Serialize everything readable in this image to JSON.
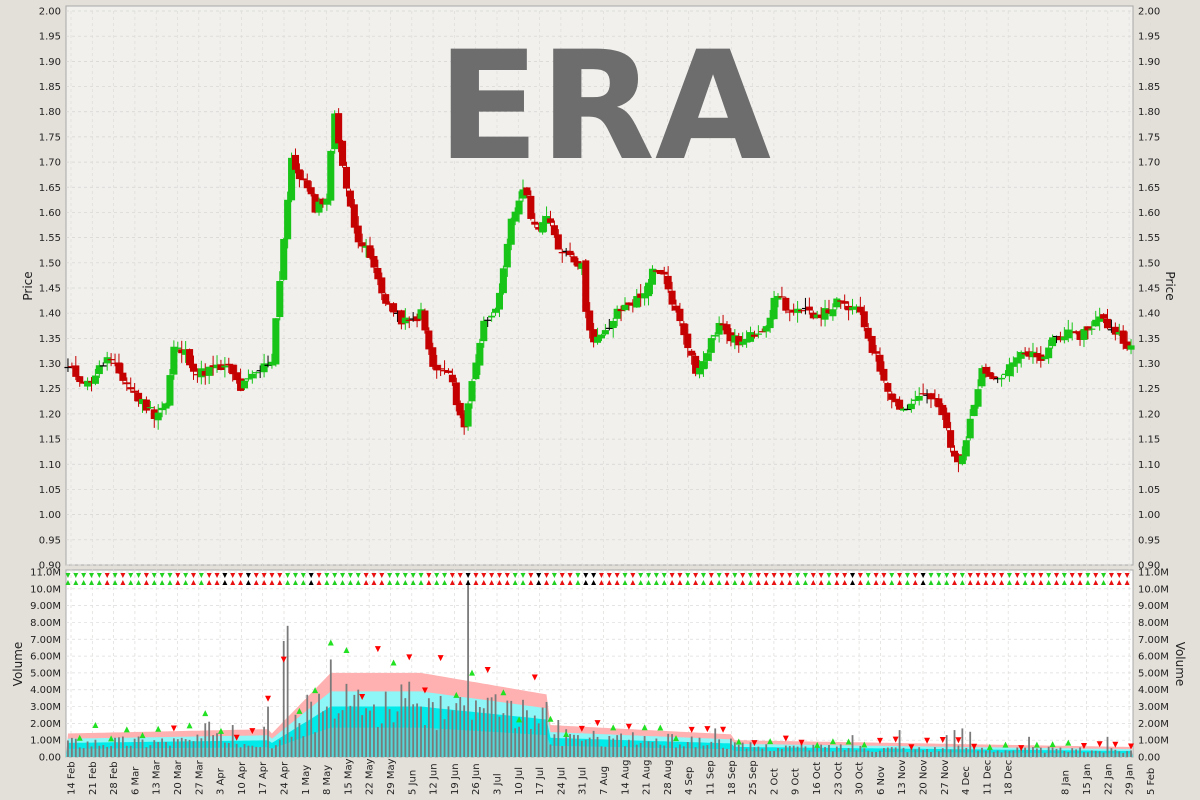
{
  "chart_data": {
    "type": "ohlc",
    "watermark": "ERA",
    "price_panel": {
      "ylabel": "Price",
      "ylim": [
        0.9,
        2.0
      ],
      "yticks": [
        "0.90",
        "0.95",
        "1.00",
        "1.05",
        "1.10",
        "1.15",
        "1.20",
        "1.25",
        "1.30",
        "1.35",
        "1.40",
        "1.45",
        "1.50",
        "1.55",
        "1.60",
        "1.65",
        "1.70",
        "1.75",
        "1.80",
        "1.85",
        "1.90",
        "1.95",
        "2.00"
      ],
      "grid": true
    },
    "volume_panel": {
      "ylabel": "Volume",
      "ylim": [
        0,
        11000000
      ],
      "yticks": [
        "0.00",
        "1.00M",
        "2.00M",
        "3.00M",
        "4.00M",
        "5.00M",
        "6.00M",
        "7.00M",
        "8.00M",
        "9.00M",
        "10.0M",
        "11.0M"
      ],
      "grid": true
    },
    "x_ticks": [
      "14 Feb",
      "21 Feb",
      "28 Feb",
      "6 Mar",
      "13 Mar",
      "20 Mar",
      "27 Mar",
      "3 Apr",
      "10 Apr",
      "17 Apr",
      "24 Apr",
      "1 May",
      "8 May",
      "15 May",
      "22 May",
      "29 May",
      "5 Jun",
      "12 Jun",
      "19 Jun",
      "26 Jun",
      "3 Jul",
      "10 Jul",
      "17 Jul",
      "24 Jul",
      "31 Jul",
      "7 Aug",
      "14 Aug",
      "21 Aug",
      "28 Aug",
      "4 Sep",
      "11 Sep",
      "18 Sep",
      "25 Sep",
      "2 Oct",
      "9 Oct",
      "16 Oct",
      "23 Oct",
      "30 Oct",
      "6 Nov",
      "13 Nov",
      "20 Nov",
      "27 Nov",
      "4 Dec",
      "11 Dec",
      "18 Dec",
      "8 Jan",
      "15 Jan",
      "22 Jan",
      "29 Jan",
      "5 Feb"
    ],
    "price_path": [
      [
        0,
        1.29
      ],
      [
        5,
        1.26
      ],
      [
        10,
        1.31
      ],
      [
        15,
        1.26
      ],
      [
        18,
        1.23
      ],
      [
        22,
        1.2
      ],
      [
        25,
        1.22
      ],
      [
        27,
        1.33
      ],
      [
        30,
        1.32
      ],
      [
        33,
        1.28
      ],
      [
        37,
        1.29
      ],
      [
        41,
        1.29
      ],
      [
        44,
        1.25
      ],
      [
        48,
        1.28
      ],
      [
        52,
        1.31
      ],
      [
        55,
        1.55
      ],
      [
        57,
        1.7
      ],
      [
        60,
        1.66
      ],
      [
        63,
        1.61
      ],
      [
        66,
        1.63
      ],
      [
        68,
        1.8
      ],
      [
        71,
        1.64
      ],
      [
        74,
        1.55
      ],
      [
        77,
        1.51
      ],
      [
        80,
        1.44
      ],
      [
        84,
        1.39
      ],
      [
        87,
        1.38
      ],
      [
        90,
        1.4
      ],
      [
        93,
        1.29
      ],
      [
        97,
        1.28
      ],
      [
        100,
        1.2
      ],
      [
        101,
        1.17
      ],
      [
        103,
        1.27
      ],
      [
        106,
        1.38
      ],
      [
        110,
        1.43
      ],
      [
        113,
        1.58
      ],
      [
        116,
        1.65
      ],
      [
        119,
        1.57
      ],
      [
        122,
        1.59
      ],
      [
        125,
        1.53
      ],
      [
        128,
        1.52
      ],
      [
        131,
        1.49
      ],
      [
        132,
        1.41
      ],
      [
        134,
        1.34
      ],
      [
        137,
        1.36
      ],
      [
        140,
        1.4
      ],
      [
        143,
        1.42
      ],
      [
        146,
        1.43
      ],
      [
        149,
        1.48
      ],
      [
        152,
        1.47
      ],
      [
        155,
        1.4
      ],
      [
        158,
        1.34
      ],
      [
        160,
        1.28
      ],
      [
        163,
        1.33
      ],
      [
        166,
        1.38
      ],
      [
        169,
        1.35
      ],
      [
        172,
        1.34
      ],
      [
        175,
        1.36
      ],
      [
        178,
        1.38
      ],
      [
        181,
        1.44
      ],
      [
        184,
        1.4
      ],
      [
        187,
        1.4
      ],
      [
        190,
        1.4
      ],
      [
        193,
        1.4
      ],
      [
        196,
        1.42
      ],
      [
        199,
        1.41
      ],
      [
        202,
        1.4
      ],
      [
        205,
        1.33
      ],
      [
        208,
        1.27
      ],
      [
        211,
        1.22
      ],
      [
        214,
        1.21
      ],
      [
        217,
        1.24
      ],
      [
        220,
        1.23
      ],
      [
        223,
        1.2
      ],
      [
        225,
        1.13
      ],
      [
        227,
        1.1
      ],
      [
        230,
        1.18
      ],
      [
        233,
        1.3
      ],
      [
        236,
        1.27
      ],
      [
        239,
        1.28
      ],
      [
        242,
        1.31
      ],
      [
        245,
        1.32
      ],
      [
        248,
        1.3
      ],
      [
        251,
        1.35
      ],
      [
        254,
        1.36
      ],
      [
        257,
        1.35
      ],
      [
        260,
        1.37
      ],
      [
        263,
        1.39
      ],
      [
        266,
        1.37
      ],
      [
        269,
        1.35
      ],
      [
        271,
        1.33
      ]
    ],
    "volume_spikes": [
      [
        35,
        2.0
      ],
      [
        36,
        2.1
      ],
      [
        39,
        1.4
      ],
      [
        42,
        1.9
      ],
      [
        50,
        1.8
      ],
      [
        51,
        3.0
      ],
      [
        55,
        6.9
      ],
      [
        56,
        7.8
      ],
      [
        61,
        3.7
      ],
      [
        66,
        3.0
      ],
      [
        67,
        5.8
      ],
      [
        69,
        2.6
      ],
      [
        76,
        2.9
      ],
      [
        80,
        2.0
      ],
      [
        86,
        3.5
      ],
      [
        90,
        3.0
      ],
      [
        94,
        1.6
      ],
      [
        102,
        10.5
      ],
      [
        110,
        2.4
      ],
      [
        115,
        1.8
      ],
      [
        120,
        2.0
      ],
      [
        125,
        2.2
      ],
      [
        140,
        1.3
      ],
      [
        165,
        1.7
      ],
      [
        200,
        1.3
      ],
      [
        212,
        1.6
      ],
      [
        224,
        1.3
      ],
      [
        226,
        1.6
      ],
      [
        228,
        1.7
      ],
      [
        230,
        1.5
      ],
      [
        245,
        1.2
      ],
      [
        265,
        1.2
      ]
    ]
  }
}
